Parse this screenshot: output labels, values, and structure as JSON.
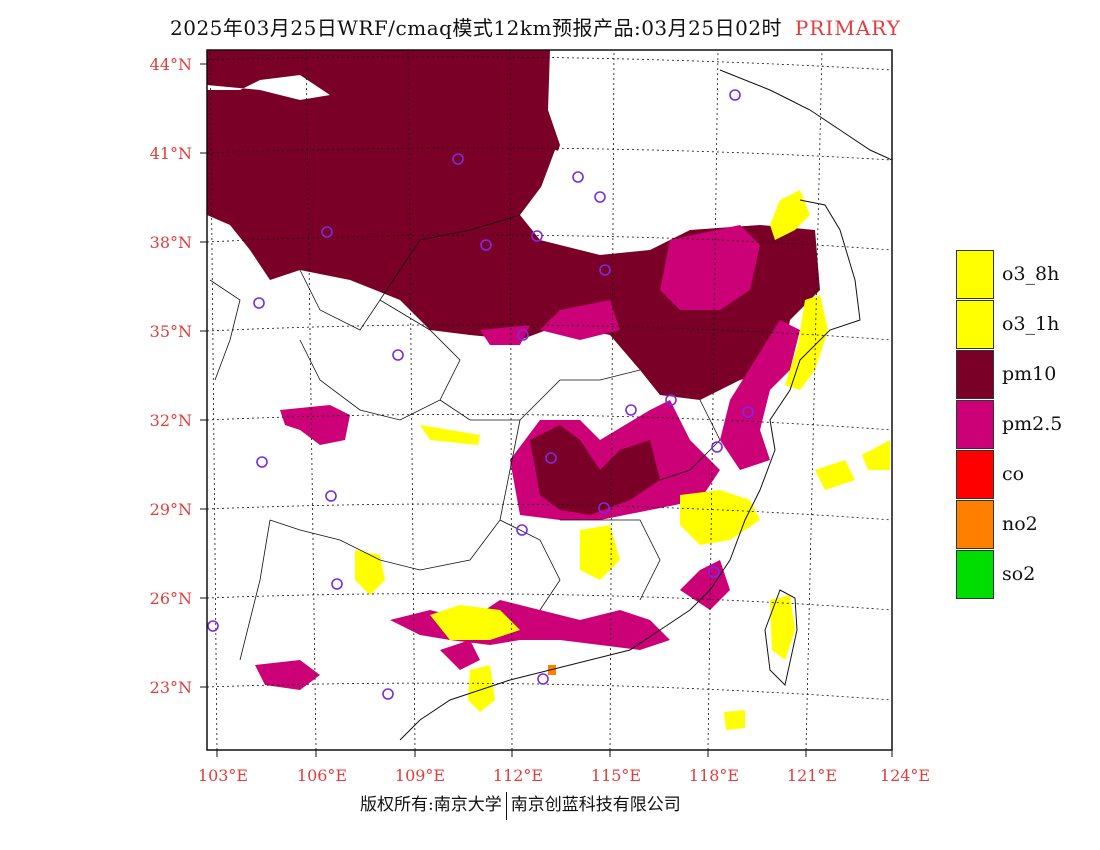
{
  "title": {
    "main": "2025年03月25日WRF/cmaq模式12km预报产品:03月25日02时",
    "tag": "PRIMARY"
  },
  "lat_labels": [
    "44°N",
    "41°N",
    "38°N",
    "35°N",
    "32°N",
    "29°N",
    "26°N",
    "23°N"
  ],
  "lon_labels": [
    "103°E",
    "106°E",
    "109°E",
    "112°E",
    "115°E",
    "118°E",
    "121°E",
    "124°E"
  ],
  "legend": [
    {
      "label": "o3_8h",
      "color": "#ffff00"
    },
    {
      "label": "o3_1h",
      "color": "#ffff00"
    },
    {
      "label": "pm10",
      "color": "#7a0028"
    },
    {
      "label": "pm2.5",
      "color": "#cc0077"
    },
    {
      "label": "co",
      "color": "#ff0000"
    },
    {
      "label": "no2",
      "color": "#ff8000"
    },
    {
      "label": "so2",
      "color": "#00dd00"
    }
  ],
  "footer": {
    "left": "版权所有:南京大学",
    "right": "南京创蓝科技有限公司"
  },
  "colors": {
    "pm10": "#7a0028",
    "pm25": "#cc0077",
    "o3": "#ffff00",
    "no2": "#ff8000",
    "station": "#7a2be0",
    "axis_label": "#e53b3b"
  }
}
